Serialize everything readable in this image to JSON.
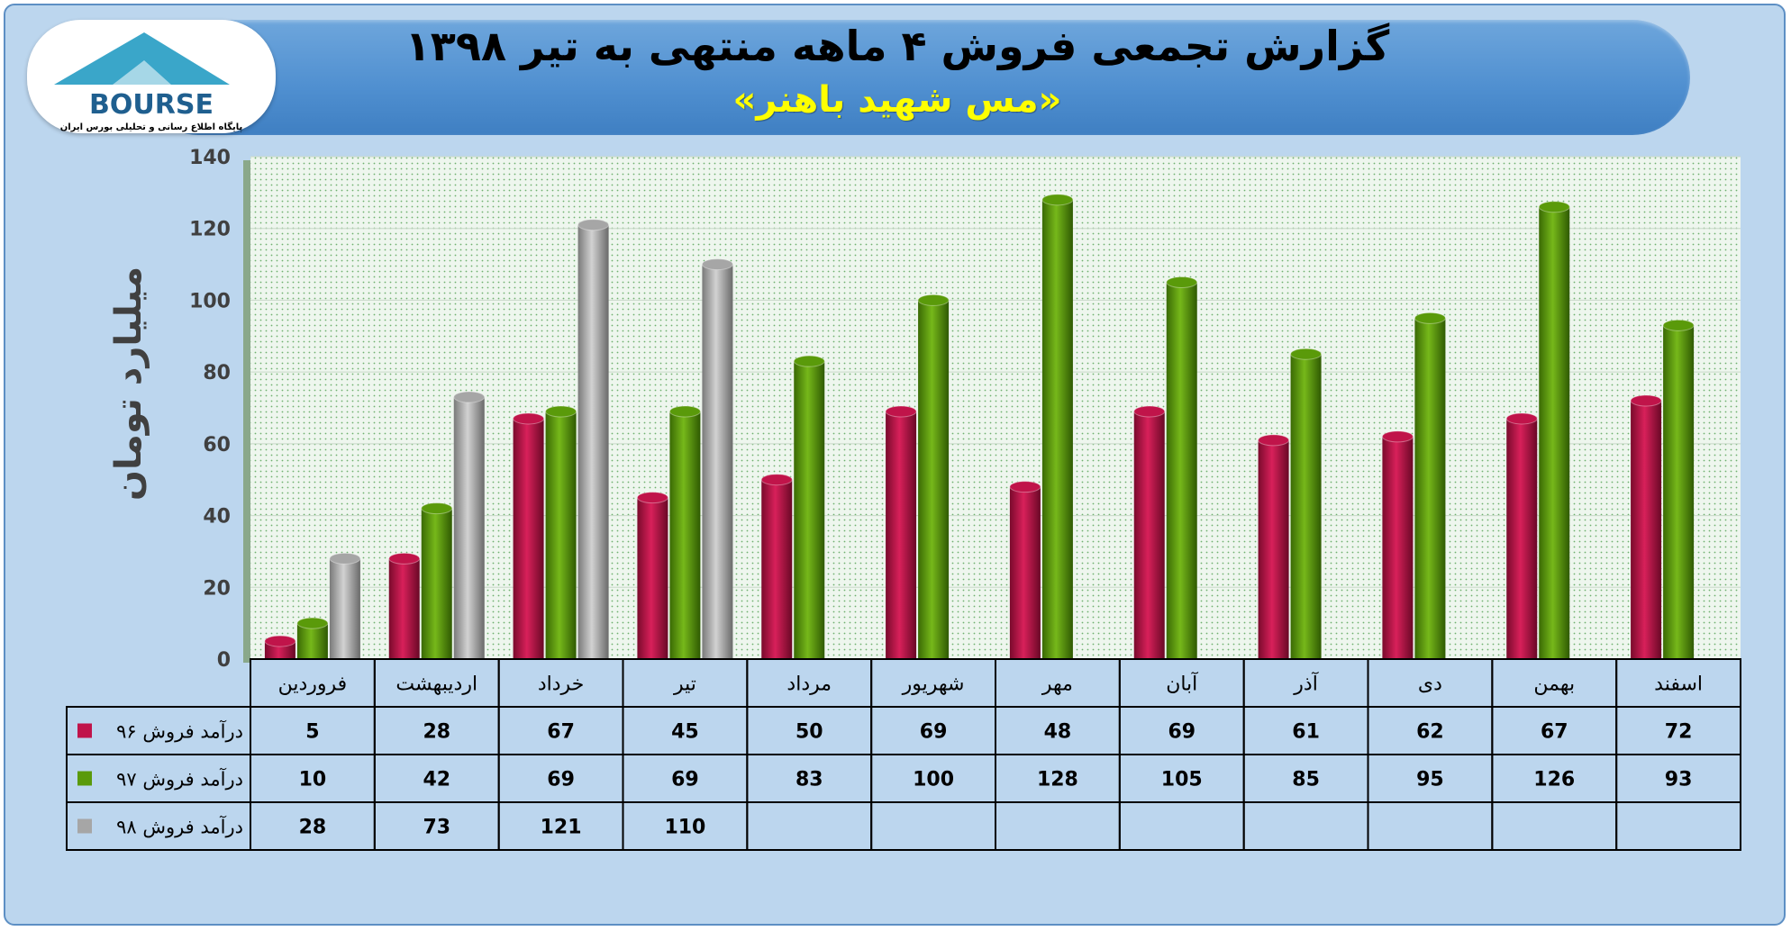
{
  "header": {
    "title": "گزارش تجمعی فروش ۴ ماهه منتهی به تیر ۱۳۹۸",
    "subtitle": "«مس شهید باهنر»"
  },
  "logo": {
    "text": "BOURSE",
    "tagline": "پایگاه اطلاع رسانی و تحلیلی بورس ایران"
  },
  "colors": {
    "s96": "#c0144a",
    "s97": "#5a9a0a",
    "s98": "#a6a6a6",
    "plot_bg": "#e8f3e8",
    "frame_bg": "#bcd6ee",
    "banner": "#4f8fd0"
  },
  "chart_data": {
    "type": "bar",
    "title": "گزارش تجمعی فروش ۴ ماهه منتهی به تیر ۱۳۹۸",
    "subtitle": "«مس شهید باهنر»",
    "ylabel": "میلیارد تومان",
    "ylim": [
      0,
      140
    ],
    "yticks": [
      0,
      20,
      40,
      60,
      80,
      100,
      120,
      140
    ],
    "categories": [
      "فروردین",
      "اردیبهشت",
      "خرداد",
      "تیر",
      "مرداد",
      "شهریور",
      "مهر",
      "آبان",
      "آذر",
      "دی",
      "بهمن",
      "اسفند"
    ],
    "series": [
      {
        "name": "درآمد فروش ۹۶",
        "color": "#c0144a",
        "values": [
          5,
          28,
          67,
          45,
          50,
          69,
          48,
          69,
          61,
          62,
          67,
          72
        ]
      },
      {
        "name": "درآمد فروش ۹۷",
        "color": "#5a9a0a",
        "values": [
          10,
          42,
          69,
          69,
          83,
          100,
          128,
          105,
          85,
          95,
          126,
          93
        ]
      },
      {
        "name": "درآمد فروش ۹۸",
        "color": "#a6a6a6",
        "values": [
          28,
          73,
          121,
          110,
          null,
          null,
          null,
          null,
          null,
          null,
          null,
          null
        ]
      }
    ],
    "grid": true,
    "legend": "data-table"
  }
}
